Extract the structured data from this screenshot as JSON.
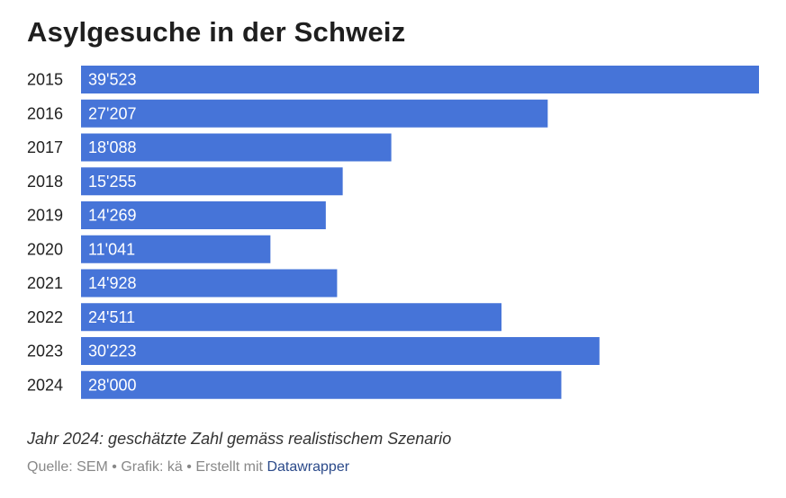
{
  "chart_data": {
    "type": "bar",
    "orientation": "horizontal",
    "title": "Asylgesuche in der Schweiz",
    "categories": [
      "2015",
      "2016",
      "2017",
      "2018",
      "2019",
      "2020",
      "2021",
      "2022",
      "2023",
      "2024"
    ],
    "values": [
      39523,
      27207,
      18088,
      15255,
      14269,
      11041,
      14928,
      24511,
      30223,
      28000
    ],
    "value_labels": [
      "39'523",
      "27'207",
      "18'088",
      "15'255",
      "14'269",
      "11'041",
      "14'928",
      "24'511",
      "30'223",
      "28'000"
    ],
    "xlim": [
      0,
      39523
    ],
    "bar_color": "#4674d8",
    "grid": false,
    "legend": "none",
    "note": "Jahr 2024: geschätzte Zahl gemäss realistischem Szenario"
  },
  "footer": {
    "source": "Quelle: SEM",
    "separator": "•",
    "credit": "Grafik: kä",
    "created_with": "Erstellt mit",
    "tool_link": "Datawrapper"
  },
  "colors": {
    "bar": "#4674d8",
    "link": "#2b4a8a"
  }
}
